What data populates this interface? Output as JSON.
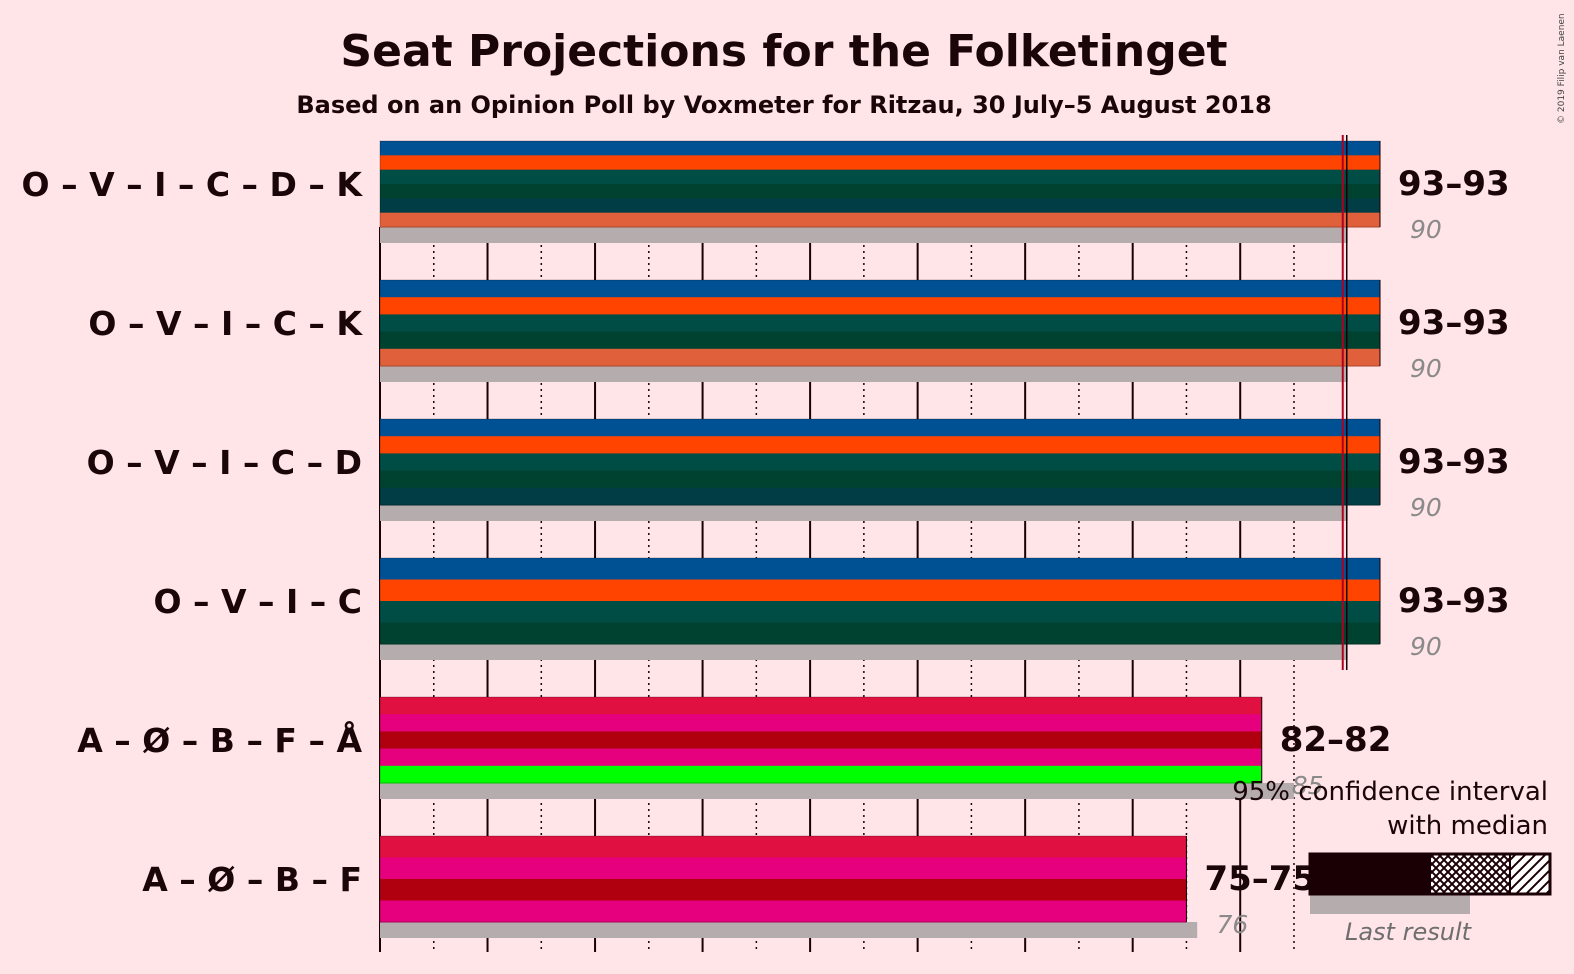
{
  "copyright": "© 2019 Filip van Laenen",
  "chart_data": {
    "type": "bar",
    "title": "Seat Projections for the Folketinget",
    "subtitle": "Based on an Opinion Poll by Voxmeter for Ritzau, 30 July–5 August 2018",
    "xlim": [
      0,
      93
    ],
    "majority": 90,
    "party_colors": {
      "O": "#005094",
      "V": "#ff4400",
      "I": "#004d46",
      "C": "#004230",
      "D": "#003d45",
      "K": "#e0603c",
      "A": "#e01040",
      "Ø": "#e6007e",
      "B": "#b00010",
      "F": "#e6007e",
      "Å": "#00ff00"
    },
    "coalitions": [
      {
        "label": "O – V – I – C – D – K",
        "parties": [
          "O",
          "V",
          "I",
          "C",
          "D",
          "K"
        ],
        "low": 93,
        "median": 93,
        "high": 93,
        "range_label": "93–93",
        "last_result": 90,
        "last_label": "90"
      },
      {
        "label": "O – V – I – C – K",
        "parties": [
          "O",
          "V",
          "I",
          "C",
          "K"
        ],
        "low": 93,
        "median": 93,
        "high": 93,
        "range_label": "93–93",
        "last_result": 90,
        "last_label": "90"
      },
      {
        "label": "O – V – I – C – D",
        "parties": [
          "O",
          "V",
          "I",
          "C",
          "D"
        ],
        "low": 93,
        "median": 93,
        "high": 93,
        "range_label": "93–93",
        "last_result": 90,
        "last_label": "90"
      },
      {
        "label": "O – V – I – C",
        "parties": [
          "O",
          "V",
          "I",
          "C"
        ],
        "low": 93,
        "median": 93,
        "high": 93,
        "range_label": "93–93",
        "last_result": 90,
        "last_label": "90"
      },
      {
        "label": "A – Ø – B – F – Å",
        "parties": [
          "A",
          "Ø",
          "B",
          "F",
          "Å"
        ],
        "low": 82,
        "median": 82,
        "high": 82,
        "range_label": "82–82",
        "last_result": 85,
        "last_label": "85"
      },
      {
        "label": "A – Ø – B – F",
        "parties": [
          "A",
          "Ø",
          "B",
          "F"
        ],
        "low": 75,
        "median": 75,
        "high": 75,
        "range_label": "75–75",
        "last_result": 76,
        "last_label": "76"
      }
    ],
    "legend": {
      "line1": "95% confidence interval",
      "line2": "with median",
      "last_result": "Last result"
    }
  }
}
